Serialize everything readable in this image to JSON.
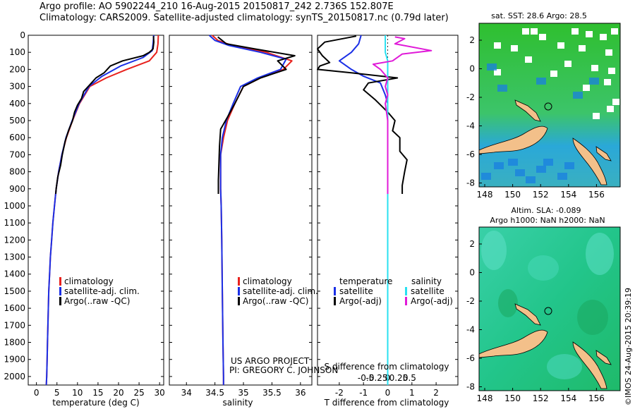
{
  "header": {
    "line1": "Argo profile: AO 5902244_210 16-Aug-2015 20150817_242 2.736S 152.807E",
    "line2": "Climatology: CARS2009. Satellite-adjusted climatology: synTS_20150817.nc (0.79d later)"
  },
  "chart_data": [
    {
      "id": "temperature",
      "type": "line",
      "xlabel": "temperature (deg C)",
      "ylabel": "",
      "xlim": [
        -2,
        31
      ],
      "ylim": [
        2050,
        0
      ],
      "xticks": [
        0,
        5,
        10,
        15,
        20,
        25,
        30
      ],
      "yticks": [
        0,
        100,
        200,
        300,
        400,
        500,
        600,
        700,
        800,
        900,
        1000,
        1100,
        1200,
        1300,
        1400,
        1500,
        1600,
        1700,
        1800,
        1900,
        2000
      ],
      "legend": [
        "climatology",
        "satellite-adj. clim.",
        "Argo(..raw -QC)"
      ],
      "series": [
        {
          "name": "climatology",
          "color": "#e8211d",
          "points": [
            [
              29.7,
              0
            ],
            [
              29.6,
              50
            ],
            [
              29.3,
              100
            ],
            [
              27.5,
              150
            ],
            [
              22,
              200
            ],
            [
              17,
              250
            ],
            [
              13,
              300
            ],
            [
              10.5,
              400
            ],
            [
              8.8,
              500
            ],
            [
              7.3,
              600
            ],
            [
              6.2,
              700
            ],
            [
              5.4,
              800
            ],
            [
              4.8,
              900
            ],
            [
              4.4,
              1000
            ],
            [
              4.0,
              1100
            ],
            [
              3.7,
              1200
            ],
            [
              3.4,
              1300
            ],
            [
              3.2,
              1400
            ],
            [
              3.0,
              1500
            ],
            [
              2.9,
              1600
            ],
            [
              2.8,
              1700
            ],
            [
              2.7,
              1800
            ],
            [
              2.6,
              1900
            ],
            [
              2.5,
              2000
            ],
            [
              2.4,
              2050
            ]
          ]
        },
        {
          "name": "satellite-adj. clim.",
          "color": "#1a2fe6",
          "points": [
            [
              28.6,
              0
            ],
            [
              28.4,
              50
            ],
            [
              28.2,
              90
            ],
            [
              26,
              130
            ],
            [
              20.5,
              180
            ],
            [
              16,
              240
            ],
            [
              12.8,
              300
            ],
            [
              10.4,
              400
            ],
            [
              8.7,
              500
            ],
            [
              7.2,
              600
            ],
            [
              6.2,
              700
            ],
            [
              5.4,
              800
            ],
            [
              4.8,
              900
            ],
            [
              4.4,
              1000
            ],
            [
              4.0,
              1100
            ],
            [
              3.7,
              1200
            ],
            [
              3.4,
              1300
            ],
            [
              3.2,
              1400
            ],
            [
              3.0,
              1500
            ],
            [
              2.9,
              1600
            ],
            [
              2.8,
              1700
            ],
            [
              2.7,
              1800
            ],
            [
              2.6,
              1900
            ],
            [
              2.5,
              2000
            ],
            [
              2.4,
              2050
            ]
          ]
        },
        {
          "name": "Argo(..raw -QC)",
          "color": "#000000",
          "points": [
            [
              28.5,
              5
            ],
            [
              28.6,
              40
            ],
            [
              28.4,
              80
            ],
            [
              27.5,
              100
            ],
            [
              26,
              120
            ],
            [
              21,
              150
            ],
            [
              18,
              180
            ],
            [
              16.5,
              220
            ],
            [
              14.5,
              250
            ],
            [
              13,
              290
            ],
            [
              11.5,
              330
            ],
            [
              11,
              370
            ],
            [
              10,
              410
            ],
            [
              9.3,
              450
            ],
            [
              8.8,
              500
            ],
            [
              7.8,
              560
            ],
            [
              7,
              620
            ],
            [
              6.3,
              700
            ],
            [
              5.9,
              760
            ],
            [
              5.2,
              830
            ],
            [
              4.8,
              900
            ],
            [
              4.7,
              930
            ]
          ]
        }
      ]
    },
    {
      "id": "salinity",
      "type": "line",
      "xlabel": "salinity",
      "ylabel": "",
      "xlim": [
        33.7,
        36.2
      ],
      "ylim": [
        2050,
        0
      ],
      "xticks": [
        34,
        34.5,
        35,
        35.5,
        36
      ],
      "legend": [
        "climatology",
        "satellite-adj. clim.",
        "Argo(..raw -QC)"
      ],
      "series": [
        {
          "name": "climatology",
          "color": "#e8211d",
          "points": [
            [
              34.45,
              0
            ],
            [
              34.55,
              30
            ],
            [
              34.8,
              60
            ],
            [
              35.4,
              100
            ],
            [
              35.85,
              150
            ],
            [
              35.7,
              200
            ],
            [
              35.3,
              250
            ],
            [
              35.0,
              300
            ],
            [
              34.85,
              400
            ],
            [
              34.72,
              500
            ],
            [
              34.65,
              600
            ],
            [
              34.6,
              700
            ],
            [
              34.6,
              800
            ],
            [
              34.6,
              900
            ],
            [
              34.61,
              1000
            ],
            [
              34.62,
              1200
            ],
            [
              34.63,
              1500
            ],
            [
              34.64,
              1800
            ],
            [
              34.65,
              2000
            ],
            [
              34.65,
              2050
            ]
          ]
        },
        {
          "name": "satellite-adj. clim.",
          "color": "#1a2fe6",
          "points": [
            [
              34.4,
              0
            ],
            [
              34.5,
              30
            ],
            [
              34.75,
              60
            ],
            [
              35.3,
              100
            ],
            [
              35.75,
              140
            ],
            [
              35.65,
              200
            ],
            [
              35.25,
              250
            ],
            [
              34.95,
              300
            ],
            [
              34.82,
              400
            ],
            [
              34.7,
              500
            ],
            [
              34.63,
              600
            ],
            [
              34.6,
              700
            ],
            [
              34.6,
              800
            ],
            [
              34.6,
              900
            ],
            [
              34.61,
              1000
            ],
            [
              34.62,
              1200
            ],
            [
              34.63,
              1500
            ],
            [
              34.64,
              1800
            ],
            [
              34.65,
              2000
            ],
            [
              34.65,
              2050
            ]
          ]
        },
        {
          "name": "Argo(..raw -QC)",
          "color": "#000000",
          "points": [
            [
              34.55,
              10
            ],
            [
              34.7,
              50
            ],
            [
              35.2,
              80
            ],
            [
              35.9,
              120
            ],
            [
              35.6,
              150
            ],
            [
              35.75,
              200
            ],
            [
              35.3,
              250
            ],
            [
              35.0,
              300
            ],
            [
              34.85,
              400
            ],
            [
              34.72,
              480
            ],
            [
              34.6,
              550
            ],
            [
              34.58,
              650
            ],
            [
              34.57,
              750
            ],
            [
              34.56,
              850
            ],
            [
              34.56,
              930
            ]
          ]
        }
      ]
    },
    {
      "id": "differences",
      "type": "line",
      "xlabel": "T difference from climatology",
      "xlabel2": "S difference from climatology",
      "xlim": [
        -2.9,
        2.9
      ],
      "ylim": [
        2050,
        0
      ],
      "xticks": [
        -2,
        -1,
        0,
        1,
        2
      ],
      "xticks_s": [
        "-0.5",
        "-0.25",
        "0",
        "0.25",
        "0.5"
      ],
      "xticks_s_values": [
        -0.5,
        -0.25,
        0,
        0.25,
        0.5
      ],
      "legend_head": [
        "temperature",
        "salinity"
      ],
      "legend": [
        "satellite",
        "Argo(-adj)",
        "satellite",
        "Argo(-adj)"
      ],
      "series": [
        {
          "name": "temperature satellite",
          "color": "#1a2fe6",
          "points": [
            [
              -1.1,
              0
            ],
            [
              -1.2,
              50
            ],
            [
              -1.5,
              100
            ],
            [
              -2.0,
              150
            ],
            [
              -1.5,
              200
            ],
            [
              -1,
              240
            ],
            [
              -0.3,
              280
            ],
            [
              -0.1,
              350
            ],
            [
              0,
              400
            ],
            [
              0,
              500
            ],
            [
              0,
              700
            ],
            [
              0,
              1000
            ],
            [
              0,
              1500
            ],
            [
              0,
              2050
            ]
          ]
        },
        {
          "name": "temperature Argo(-adj)",
          "color": "#000000",
          "points": [
            [
              -1.3,
              5
            ],
            [
              -2.6,
              40
            ],
            [
              -2.9,
              80
            ],
            [
              -2.7,
              120
            ],
            [
              -2.4,
              160
            ],
            [
              -2.8,
              180
            ],
            [
              -2.9,
              200
            ],
            [
              -1.5,
              220
            ],
            [
              0.4,
              250
            ],
            [
              -0.8,
              280
            ],
            [
              -1,
              320
            ],
            [
              -0.5,
              380
            ],
            [
              0,
              450
            ],
            [
              0.3,
              500
            ],
            [
              0.2,
              560
            ],
            [
              0.5,
              600
            ],
            [
              0.5,
              680
            ],
            [
              0.8,
              730
            ],
            [
              0.7,
              800
            ],
            [
              0.6,
              880
            ],
            [
              0.6,
              930
            ]
          ]
        },
        {
          "name": "salinity satellite",
          "color": "#28e0f0",
          "points": [
            [
              -0.1,
              0
            ],
            [
              -0.1,
              30
            ],
            [
              -0.1,
              100
            ],
            [
              0,
              150
            ],
            [
              0,
              200
            ],
            [
              0,
              300
            ],
            [
              0,
              500
            ],
            [
              0,
              1000
            ],
            [
              0,
              1500
            ],
            [
              0,
              2050
            ]
          ]
        },
        {
          "name": "salinity Argo(-adj)",
          "color": "#e01ad8",
          "points": [
            [
              0.3,
              10
            ],
            [
              0.7,
              20
            ],
            [
              0.3,
              50
            ],
            [
              1.8,
              90
            ],
            [
              0.6,
              110
            ],
            [
              0.2,
              150
            ],
            [
              -0.6,
              170
            ],
            [
              -0.3,
              200
            ],
            [
              0,
              250
            ],
            [
              -0.1,
              300
            ],
            [
              0,
              350
            ],
            [
              -0.1,
              400
            ],
            [
              0,
              500
            ],
            [
              0,
              600
            ],
            [
              0,
              700
            ],
            [
              0,
              800
            ],
            [
              0,
              930
            ]
          ]
        }
      ]
    }
  ],
  "labels": {
    "project_line1": "US ARGO PROJECT",
    "project_line2": "PI: GREGORY C. JOHNSON"
  },
  "maps": {
    "sst": {
      "title": "sat. SST: 28.6 Argo: 28.5",
      "xticks": [
        "148",
        "150",
        "152",
        "154",
        "156"
      ],
      "yticks": [
        "2",
        "0",
        "-2",
        "-4",
        "-6",
        "-8"
      ],
      "land_color": "#f3c08a",
      "sea_color": "#2fbf2f"
    },
    "sla": {
      "title1": "Altim. SLA: -0.089",
      "title2": "Argo h1000: NaN h2000: NaN",
      "xticks": [
        "148",
        "150",
        "152",
        "154",
        "156"
      ],
      "yticks": [
        "2",
        "0",
        "-2",
        "-4",
        "-6",
        "-8"
      ],
      "land_color": "#f3c08a",
      "sea_color": "#22c58a"
    }
  },
  "stamp": "©IMOS 24-Aug-2015 20:39:19"
}
